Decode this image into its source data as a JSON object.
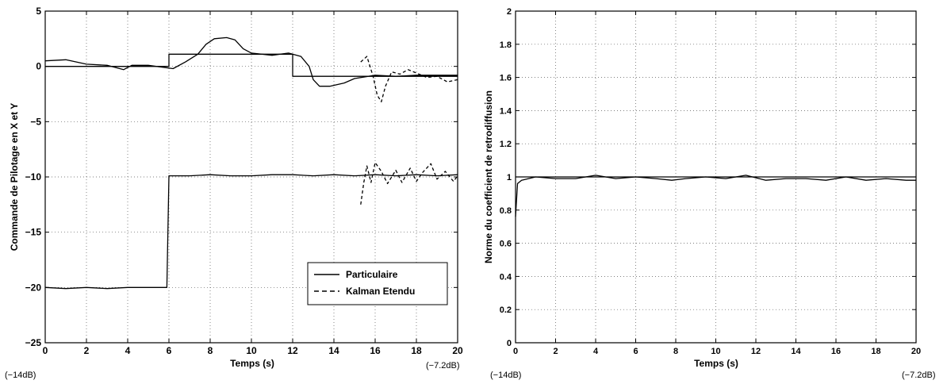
{
  "chart_data": [
    {
      "type": "line",
      "xlabel": "Temps (s)",
      "ylabel": "Commande de Pilotage en X et Y",
      "xlim": [
        0,
        20
      ],
      "ylim": [
        -25,
        5
      ],
      "xticks": [
        0,
        2,
        4,
        6,
        8,
        10,
        12,
        14,
        16,
        18,
        20
      ],
      "yticks": [
        -25,
        -20,
        -15,
        -10,
        -5,
        0,
        5
      ],
      "grid": true,
      "legend_position": "bottom-right",
      "corner_labels": {
        "left": "(−14dB)",
        "right": "(−7.2dB)"
      },
      "series": [
        {
          "name": "Particulaire",
          "style": "solid",
          "segments": [
            {
              "x": [
                0,
                6,
                6,
                12,
                12,
                20
              ],
              "y": [
                0,
                0,
                1.1,
                1.1,
                -0.9,
                -0.9
              ]
            },
            {
              "x": [
                0,
                1,
                2,
                3,
                3.8,
                4.2,
                5,
                5.8,
                6.2,
                6.8,
                7.4,
                7.8,
                8.2,
                8.8,
                9.2,
                9.6,
                10,
                11,
                11.8,
                12.4,
                12.8,
                13,
                13.3,
                13.8,
                14.5,
                15,
                16,
                17,
                18,
                19,
                20
              ],
              "y": [
                0.5,
                0.6,
                0.2,
                0.1,
                -0.3,
                0.1,
                0.1,
                -0.1,
                -0.2,
                0.4,
                1.1,
                2.0,
                2.5,
                2.6,
                2.4,
                1.6,
                1.2,
                1.0,
                1.2,
                0.9,
                0,
                -1.2,
                -1.8,
                -1.8,
                -1.5,
                -1.1,
                -0.8,
                -0.9,
                -0.8,
                -0.8,
                -0.8
              ]
            },
            {
              "x": [
                0,
                1,
                2,
                3,
                4,
                5,
                5.9,
                6,
                7,
                8,
                9,
                10,
                11,
                12,
                13,
                14,
                15,
                16,
                17,
                18,
                19,
                20
              ],
              "y": [
                -20.0,
                -20.1,
                -20.0,
                -20.1,
                -20.0,
                -20.0,
                -20.0,
                -9.9,
                -9.9,
                -9.8,
                -9.9,
                -9.9,
                -9.8,
                -9.8,
                -9.9,
                -9.8,
                -9.9,
                -9.8,
                -9.9,
                -9.8,
                -9.9,
                -9.8
              ]
            }
          ]
        },
        {
          "name": "Kalman Etendu",
          "style": "dashed",
          "segments": [
            {
              "x": [
                15.3,
                15.6,
                15.9,
                16.1,
                16.3,
                16.5,
                16.8,
                17.2,
                17.6,
                18,
                18.5,
                19,
                19.5,
                20
              ],
              "y": [
                0.4,
                0.9,
                -0.9,
                -2.6,
                -3.2,
                -1.8,
                -0.5,
                -0.7,
                -0.3,
                -0.6,
                -1.0,
                -0.9,
                -1.4,
                -1.2
              ]
            },
            {
              "x": [
                15.3,
                15.45,
                15.6,
                15.8,
                16,
                16.3,
                16.6,
                17,
                17.3,
                17.7,
                18,
                18.3,
                18.7,
                19,
                19.4,
                19.8,
                20
              ],
              "y": [
                -12.5,
                -10.5,
                -9.0,
                -10.5,
                -8.7,
                -9.5,
                -10.6,
                -9.4,
                -10.5,
                -9.2,
                -10.4,
                -9.6,
                -8.8,
                -10.2,
                -9.5,
                -10.4,
                -9.9
              ]
            }
          ]
        }
      ]
    },
    {
      "type": "line",
      "xlabel": "Temps (s)",
      "ylabel": "Norme du coefficient de retrodiffusion",
      "xlim": [
        0,
        20
      ],
      "ylim": [
        0,
        2
      ],
      "xticks": [
        0,
        2,
        4,
        6,
        8,
        10,
        12,
        14,
        16,
        18,
        20
      ],
      "yticks": [
        0,
        0.2,
        0.4,
        0.6,
        0.8,
        1,
        1.2,
        1.4,
        1.6,
        1.8,
        2
      ],
      "grid": true,
      "corner_labels": {
        "left": "(−14dB)",
        "right": "(−7.2dB)"
      },
      "series": [
        {
          "style": "solid",
          "segments": [
            {
              "x": [
                0,
                20
              ],
              "y": [
                1,
                1
              ]
            },
            {
              "x": [
                0,
                0.1,
                0.3,
                1,
                2,
                3,
                4,
                5,
                6,
                7,
                7.8,
                8.5,
                9.5,
                10.5,
                11.5,
                12.5,
                13.5,
                14.5,
                15.5,
                16.5,
                17.5,
                18.5,
                19.5,
                20
              ],
              "y": [
                0.76,
                0.96,
                0.98,
                1.0,
                0.99,
                0.99,
                1.01,
                0.99,
                1.0,
                0.99,
                0.98,
                0.99,
                1.0,
                0.99,
                1.01,
                0.98,
                0.99,
                0.99,
                0.98,
                1.0,
                0.98,
                0.99,
                0.98,
                0.98
              ]
            }
          ]
        }
      ]
    }
  ]
}
